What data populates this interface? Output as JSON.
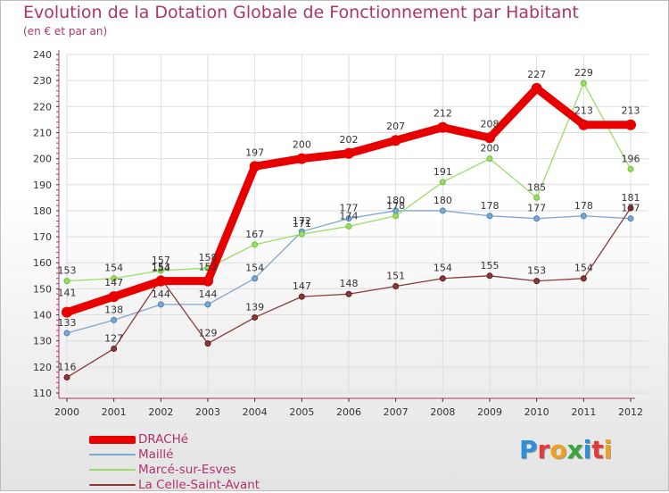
{
  "chart_data": {
    "type": "line",
    "title": "Evolution de la Dotation Globale de Fonctionnement par Habitant",
    "subtitle": "(en € et par an)",
    "xlabel": "",
    "ylabel": "",
    "ylim": [
      110,
      240
    ],
    "yticks": [
      110,
      120,
      130,
      140,
      150,
      160,
      170,
      180,
      190,
      200,
      210,
      220,
      230,
      240
    ],
    "categories": [
      "2000",
      "2001",
      "2002",
      "2003",
      "2004",
      "2005",
      "2006",
      "2007",
      "2008",
      "2009",
      "2010",
      "2011",
      "2012"
    ],
    "series": [
      {
        "name": "DRACHé",
        "color": "#e80000",
        "values": [
          141,
          147,
          153,
          153,
          197,
          200,
          202,
          207,
          212,
          208,
          227,
          213,
          213
        ]
      },
      {
        "name": "Maillé",
        "color": "#7ea7cf",
        "values": [
          133,
          138,
          144,
          144,
          154,
          172,
          177,
          180,
          180,
          178,
          177,
          178,
          177
        ]
      },
      {
        "name": "Marcé-sur-Esves",
        "color": "#99dd66",
        "values": [
          153,
          154,
          157,
          158,
          167,
          171,
          174,
          178,
          191,
          200,
          185,
          229,
          196
        ]
      },
      {
        "name": "La Celle-Saint-Avant",
        "color": "#8b3a3a",
        "values": [
          116,
          127,
          154,
          129,
          139,
          147,
          148,
          151,
          154,
          155,
          153,
          154,
          181
        ]
      }
    ],
    "legend_position": "bottom-left"
  },
  "logo": {
    "letters": [
      "P",
      "r",
      "o",
      "x",
      "i",
      "t",
      "i"
    ],
    "colors": [
      "#2e8fd6",
      "#e23a3a",
      "#f0a020",
      "#3aa63a",
      "#2e8fd6",
      "#e23a3a",
      "#f0a020"
    ]
  }
}
